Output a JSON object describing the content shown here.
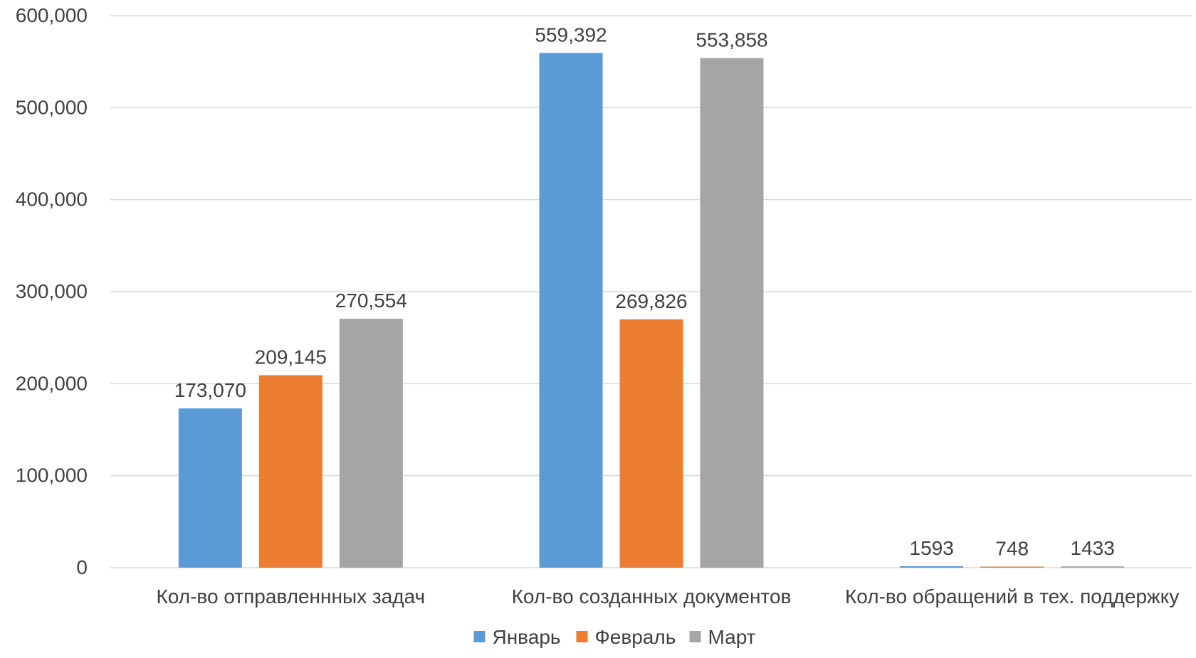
{
  "chart_data": {
    "type": "bar",
    "title": "",
    "xlabel": "",
    "ylabel": "",
    "ylim": [
      0,
      600000
    ],
    "yticks": [
      0,
      100000,
      200000,
      300000,
      400000,
      500000,
      600000
    ],
    "ytick_labels": [
      "0",
      "100,000",
      "200,000",
      "300,000",
      "400,000",
      "500,000",
      "600,000"
    ],
    "grid": true,
    "legend_position": "bottom-center",
    "categories": [
      "Кол-во отправленнных задач",
      "Кол-во созданных документов",
      "Кол-во обращений в тех. поддержку"
    ],
    "series": [
      {
        "name": "Январь",
        "color": "#5B9BD5",
        "values": [
          173070,
          559392,
          1593
        ],
        "labels": [
          "173,070",
          "559,392",
          "1593"
        ]
      },
      {
        "name": "Февраль",
        "color": "#ED7D31",
        "values": [
          209145,
          269826,
          748
        ],
        "labels": [
          "209,145",
          "269,826",
          "748"
        ]
      },
      {
        "name": "Март",
        "color": "#A5A5A5",
        "values": [
          270554,
          553858,
          1433
        ],
        "labels": [
          "270,554",
          "553,858",
          "1433"
        ]
      }
    ]
  }
}
